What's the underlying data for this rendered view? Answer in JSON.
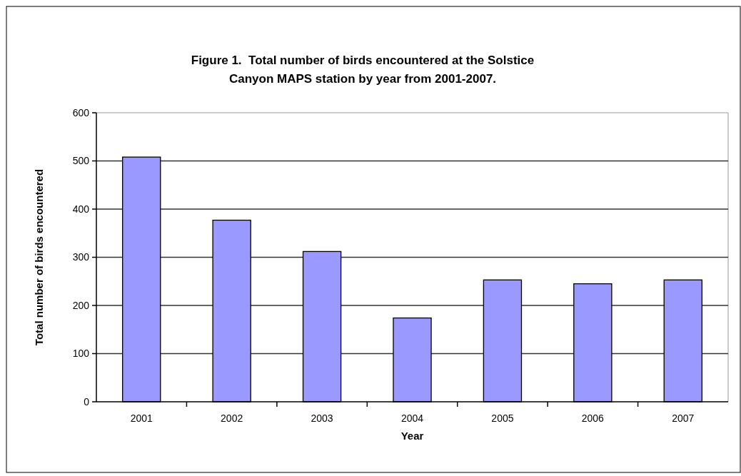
{
  "chart_data": {
    "type": "bar",
    "title": "Figure 1.  Total number of birds encountered at the Solstice\nCanyon MAPS station by year from 2001-2007.",
    "xlabel": "Year",
    "ylabel": "Total number of birds encountered",
    "categories": [
      "2001",
      "2002",
      "2003",
      "2004",
      "2005",
      "2006",
      "2007"
    ],
    "values": [
      508,
      377,
      312,
      174,
      253,
      245,
      253
    ],
    "color": "#9999ff",
    "ylim": [
      0,
      600
    ],
    "yticks": [
      0,
      100,
      200,
      300,
      400,
      500,
      600
    ],
    "grid": "y"
  }
}
